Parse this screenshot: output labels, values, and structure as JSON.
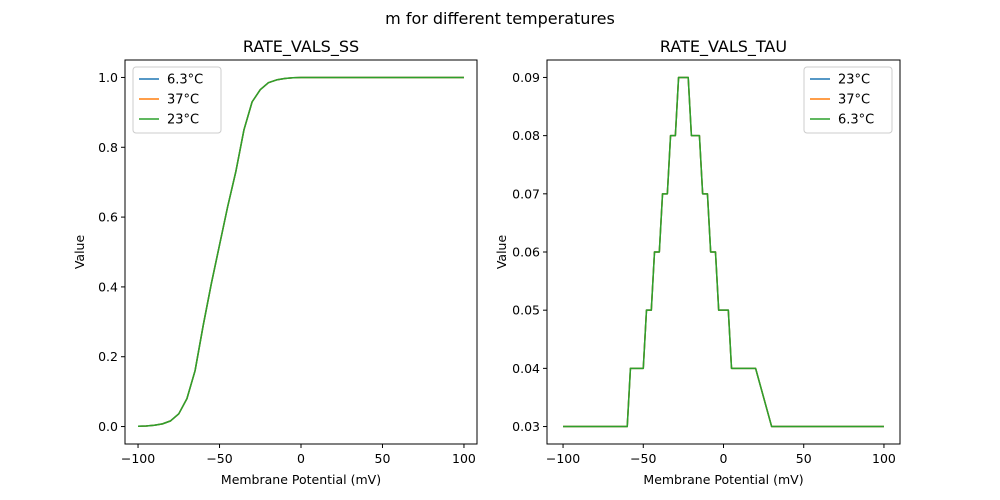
{
  "figure": {
    "suptitle": "m for different temperatures"
  },
  "colors": {
    "c0": "#1f77b4",
    "c1": "#ff7f0e",
    "c2": "#2ca02c"
  },
  "chart_data": [
    {
      "type": "line",
      "title": "RATE_VALS_SS",
      "xlabel": "Membrane Potential (mV)",
      "ylabel": "Value",
      "xlim": [
        -108,
        108
      ],
      "ylim": [
        -0.05,
        1.05
      ],
      "xticks": [
        -100,
        -50,
        0,
        50,
        100
      ],
      "xtick_labels": [
        "−100",
        "−50",
        "0",
        "50",
        "100"
      ],
      "yticks": [
        0.0,
        0.2,
        0.4,
        0.6,
        0.8,
        1.0
      ],
      "ytick_labels": [
        "0.0",
        "0.2",
        "0.4",
        "0.6",
        "0.8",
        "1.0"
      ],
      "legend": "upper-left",
      "grid": false,
      "x": [
        -100,
        -95,
        -90,
        -85,
        -80,
        -75,
        -70,
        -65,
        -60,
        -55,
        -50,
        -45,
        -40,
        -35,
        -30,
        -25,
        -20,
        -15,
        -10,
        -5,
        0,
        10,
        20,
        30,
        40,
        50,
        60,
        70,
        80,
        90,
        100
      ],
      "series": [
        {
          "name": "6.3°C",
          "color": "#1f77b4",
          "values": [
            0.0007,
            0.0017,
            0.0037,
            0.0076,
            0.0163,
            0.0365,
            0.08,
            0.16,
            0.29,
            0.41,
            0.52,
            0.63,
            0.73,
            0.85,
            0.93,
            0.965,
            0.985,
            0.993,
            0.997,
            0.999,
            1.0,
            1.0,
            1.0,
            1.0,
            1.0,
            1.0,
            1.0,
            1.0,
            1.0,
            1.0,
            1.0
          ]
        },
        {
          "name": "37°C",
          "color": "#ff7f0e",
          "values": [
            0.0007,
            0.0017,
            0.0037,
            0.0076,
            0.0163,
            0.0365,
            0.08,
            0.16,
            0.29,
            0.41,
            0.52,
            0.63,
            0.73,
            0.85,
            0.93,
            0.965,
            0.985,
            0.993,
            0.997,
            0.999,
            1.0,
            1.0,
            1.0,
            1.0,
            1.0,
            1.0,
            1.0,
            1.0,
            1.0,
            1.0,
            1.0
          ]
        },
        {
          "name": "23°C",
          "color": "#2ca02c",
          "values": [
            0.0007,
            0.0017,
            0.0037,
            0.0076,
            0.0163,
            0.0365,
            0.08,
            0.16,
            0.29,
            0.41,
            0.52,
            0.63,
            0.73,
            0.85,
            0.93,
            0.965,
            0.985,
            0.993,
            0.997,
            0.999,
            1.0,
            1.0,
            1.0,
            1.0,
            1.0,
            1.0,
            1.0,
            1.0,
            1.0,
            1.0,
            1.0
          ]
        }
      ]
    },
    {
      "type": "line",
      "title": "RATE_VALS_TAU",
      "xlabel": "Membrane Potential (mV)",
      "ylabel": "Value",
      "xlim": [
        -110,
        110
      ],
      "ylim": [
        0.027,
        0.093
      ],
      "xticks": [
        -100,
        -50,
        0,
        50,
        100
      ],
      "xtick_labels": [
        "−100",
        "−50",
        "0",
        "50",
        "100"
      ],
      "yticks": [
        0.03,
        0.04,
        0.05,
        0.06,
        0.07,
        0.08,
        0.09
      ],
      "ytick_labels": [
        "0.03",
        "0.04",
        "0.05",
        "0.06",
        "0.07",
        "0.08",
        "0.09"
      ],
      "legend": "upper-right",
      "grid": false,
      "x": [
        -100,
        -60,
        -58,
        -50,
        -48,
        -45,
        -43,
        -40,
        -38,
        -35,
        -33,
        -30,
        -28,
        -22,
        -20,
        -15,
        -13,
        -10,
        -8,
        -5,
        -3,
        3,
        5,
        20,
        30,
        100
      ],
      "series": [
        {
          "name": "23°C",
          "color": "#1f77b4",
          "values": [
            0.03,
            0.03,
            0.04,
            0.04,
            0.05,
            0.05,
            0.06,
            0.06,
            0.07,
            0.07,
            0.08,
            0.08,
            0.09,
            0.09,
            0.08,
            0.08,
            0.07,
            0.07,
            0.06,
            0.06,
            0.05,
            0.05,
            0.04,
            0.04,
            0.03,
            0.03
          ]
        },
        {
          "name": "37°C",
          "color": "#ff7f0e",
          "values": [
            0.03,
            0.03,
            0.04,
            0.04,
            0.05,
            0.05,
            0.06,
            0.06,
            0.07,
            0.07,
            0.08,
            0.08,
            0.09,
            0.09,
            0.08,
            0.08,
            0.07,
            0.07,
            0.06,
            0.06,
            0.05,
            0.05,
            0.04,
            0.04,
            0.03,
            0.03
          ]
        },
        {
          "name": "6.3°C",
          "color": "#2ca02c",
          "values": [
            0.03,
            0.03,
            0.04,
            0.04,
            0.05,
            0.05,
            0.06,
            0.06,
            0.07,
            0.07,
            0.08,
            0.08,
            0.09,
            0.09,
            0.08,
            0.08,
            0.07,
            0.07,
            0.06,
            0.06,
            0.05,
            0.05,
            0.04,
            0.04,
            0.03,
            0.03
          ]
        }
      ]
    }
  ]
}
